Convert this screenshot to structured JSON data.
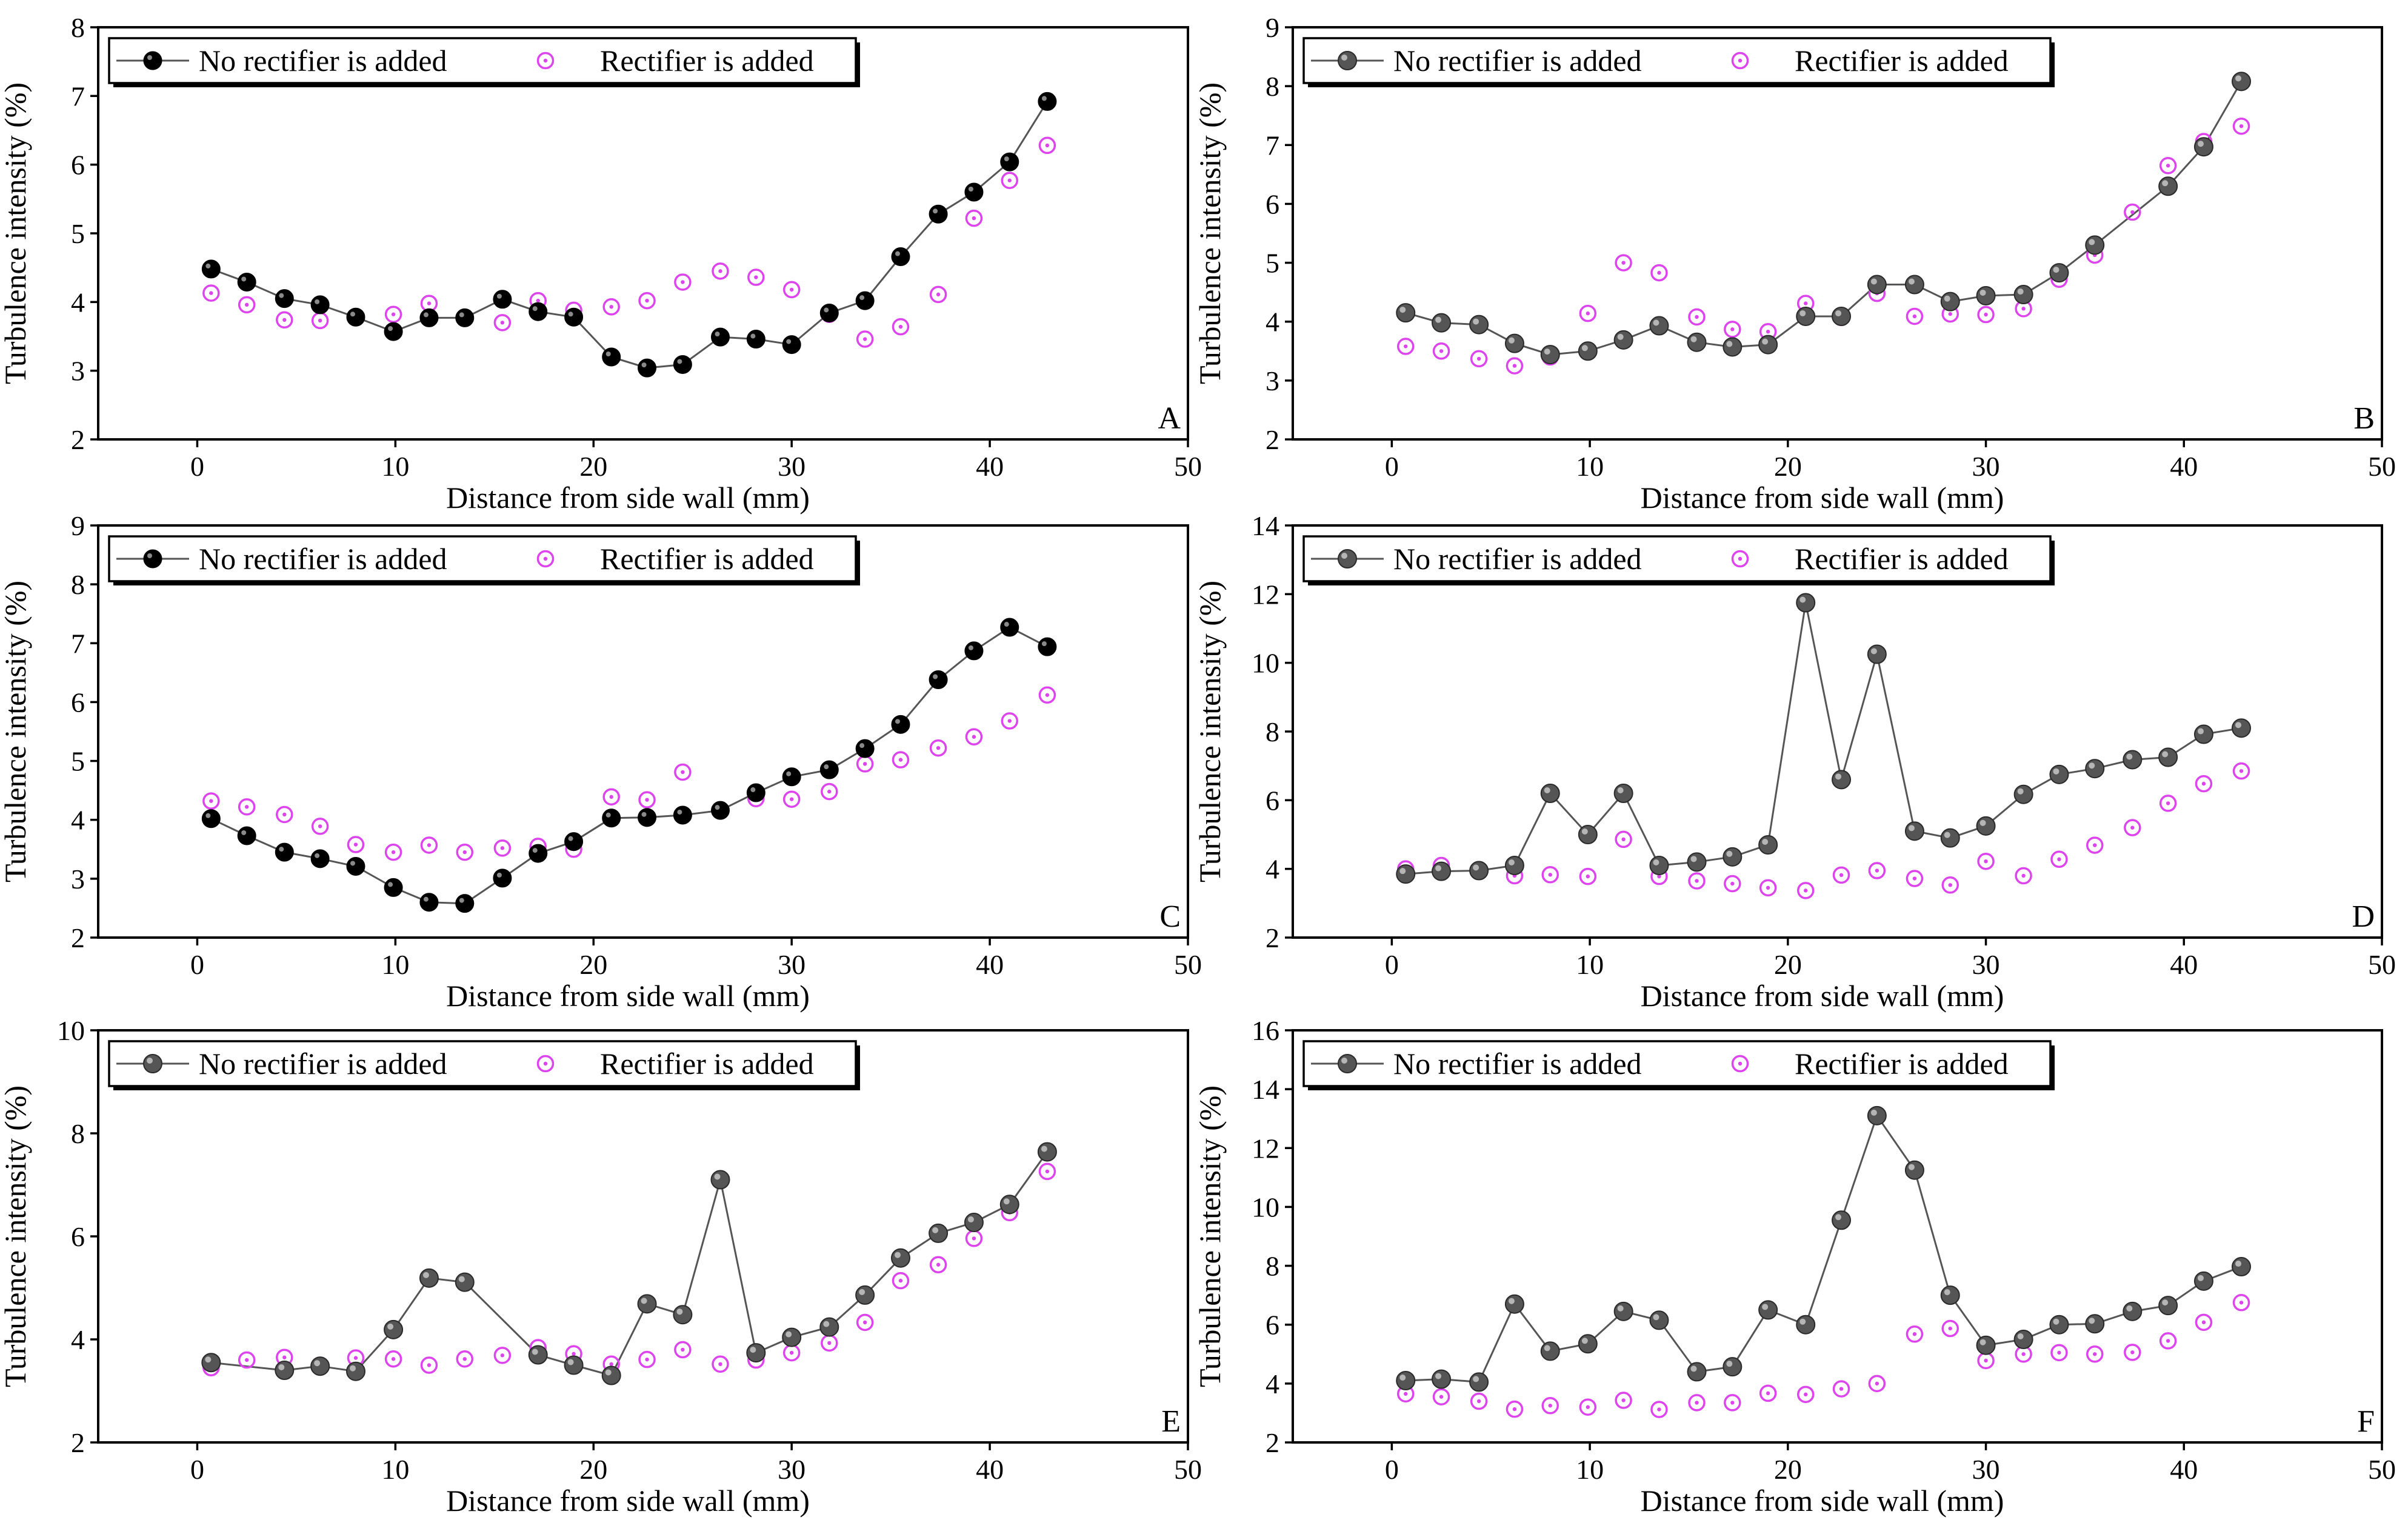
{
  "figure": {
    "series_names": [
      "No rectifier is added",
      "Rectifier is added"
    ],
    "colors": {
      "no_rectifier_black": "#000000",
      "no_rectifier_gray": "#555555",
      "rectifier": "#dd44ee",
      "line": "#555555"
    }
  },
  "chart_data": [
    {
      "type": "scatter",
      "panel": "A",
      "title": "",
      "xlabel": "Distance from side wall (mm)",
      "ylabel": "Turbulence intensity (%)",
      "xlim": [
        -5,
        50
      ],
      "ylim": [
        2,
        8
      ],
      "xticks": [
        0,
        10,
        20,
        30,
        40,
        50
      ],
      "yticks": [
        2,
        3,
        4,
        5,
        6,
        7,
        8
      ],
      "legend": "top-left",
      "marker_style": "black",
      "x": [
        0.7,
        2.5,
        4.4,
        6.2,
        8.0,
        9.9,
        11.7,
        13.5,
        15.4,
        17.2,
        19.0,
        20.9,
        22.7,
        24.5,
        26.4,
        28.2,
        30.0,
        31.9,
        33.7,
        35.5,
        37.4,
        39.2,
        41.0,
        42.9
      ],
      "series": [
        {
          "name": "No rectifier is added",
          "style": "line-marker",
          "values": [
            4.48,
            4.29,
            4.05,
            3.96,
            3.78,
            3.57,
            3.77,
            3.77,
            4.04,
            3.86,
            3.78,
            3.2,
            3.04,
            3.09,
            3.49,
            3.46,
            3.38,
            3.84,
            4.02,
            4.66,
            5.28,
            5.6,
            6.04,
            6.92
          ]
        },
        {
          "name": "Rectifier is added",
          "style": "marker",
          "values": [
            4.13,
            3.96,
            3.74,
            3.73,
            3.77,
            3.82,
            3.98,
            3.78,
            3.7,
            4.02,
            3.88,
            3.93,
            4.02,
            4.29,
            4.45,
            4.36,
            4.18,
            3.82,
            3.46,
            3.64,
            4.11,
            5.22,
            5.77,
            6.28
          ]
        }
      ]
    },
    {
      "type": "scatter",
      "panel": "B",
      "title": "",
      "xlabel": "Distance from side wall (mm)",
      "ylabel": "Turbulence intensity (%)",
      "xlim": [
        -5,
        50
      ],
      "ylim": [
        2,
        9
      ],
      "xticks": [
        0,
        10,
        20,
        30,
        40,
        50
      ],
      "yticks": [
        2,
        3,
        4,
        5,
        6,
        7,
        8,
        9
      ],
      "legend": "top-left",
      "marker_style": "gray",
      "x": [
        0.7,
        2.5,
        4.4,
        6.2,
        8.0,
        9.9,
        11.7,
        13.5,
        15.4,
        17.2,
        19.0,
        20.9,
        22.7,
        24.5,
        26.4,
        28.2,
        30.0,
        31.9,
        33.7,
        35.5,
        37.4,
        39.2,
        41.0,
        42.9
      ],
      "series": [
        {
          "name": "No rectifier is added",
          "style": "line-marker",
          "values": [
            4.15,
            3.98,
            3.95,
            3.63,
            3.44,
            3.5,
            3.69,
            3.93,
            3.65,
            3.57,
            3.61,
            4.09,
            4.09,
            4.63,
            4.63,
            4.34,
            4.44,
            4.46,
            4.83,
            5.3,
            null,
            6.3,
            6.97,
            8.08
          ]
        },
        {
          "name": "Rectifier is added",
          "style": "marker",
          "values": [
            3.58,
            3.5,
            3.37,
            3.25,
            3.4,
            4.14,
            5.0,
            4.83,
            4.08,
            3.87,
            3.83,
            4.31,
            4.07,
            4.48,
            4.09,
            4.13,
            4.12,
            4.22,
            4.72,
            5.13,
            5.86,
            6.65,
            7.06,
            7.32
          ]
        }
      ]
    },
    {
      "type": "scatter",
      "panel": "C",
      "title": "",
      "xlabel": "Distance from side wall (mm)",
      "ylabel": "Turbulence intensity (%)",
      "xlim": [
        -5,
        50
      ],
      "ylim": [
        2,
        9
      ],
      "xticks": [
        0,
        10,
        20,
        30,
        40,
        50
      ],
      "yticks": [
        2,
        3,
        4,
        5,
        6,
        7,
        8,
        9
      ],
      "legend": "top-left",
      "marker_style": "black",
      "x": [
        0.7,
        2.5,
        4.4,
        6.2,
        8.0,
        9.9,
        11.7,
        13.5,
        15.4,
        17.2,
        19.0,
        20.9,
        22.7,
        24.5,
        26.4,
        28.2,
        30.0,
        31.9,
        33.7,
        35.5,
        37.4,
        39.2,
        41.0,
        42.9
      ],
      "series": [
        {
          "name": "No rectifier is added",
          "style": "line-marker",
          "values": [
            4.02,
            3.73,
            3.45,
            3.34,
            3.21,
            2.85,
            2.6,
            2.58,
            3.01,
            3.43,
            3.63,
            4.03,
            4.04,
            4.08,
            4.16,
            4.46,
            4.73,
            4.85,
            5.21,
            5.62,
            6.38,
            6.87,
            7.27,
            6.94
          ]
        },
        {
          "name": "Rectifier is added",
          "style": "marker",
          "values": [
            4.32,
            4.22,
            4.09,
            3.89,
            3.58,
            3.45,
            3.57,
            3.45,
            3.52,
            3.55,
            3.5,
            4.39,
            4.34,
            4.81,
            4.15,
            4.36,
            4.35,
            4.48,
            4.95,
            5.02,
            5.22,
            5.41,
            5.68,
            6.12
          ]
        }
      ]
    },
    {
      "type": "scatter",
      "panel": "D",
      "title": "",
      "xlabel": "Distance from side wall (mm)",
      "ylabel": "Turbulence intensity (%)",
      "xlim": [
        -5,
        50
      ],
      "ylim": [
        2,
        14
      ],
      "xticks": [
        0,
        10,
        20,
        30,
        40,
        50
      ],
      "yticks": [
        2,
        4,
        6,
        8,
        10,
        12,
        14
      ],
      "legend": "top-left",
      "marker_style": "gray",
      "x": [
        0.7,
        2.5,
        4.4,
        6.2,
        8.0,
        9.9,
        11.7,
        13.5,
        15.4,
        17.2,
        19.0,
        20.9,
        22.7,
        24.5,
        26.4,
        28.2,
        30.0,
        31.9,
        33.7,
        35.5,
        37.4,
        39.2,
        41.0,
        42.9
      ],
      "series": [
        {
          "name": "No rectifier is added",
          "style": "line-marker",
          "values": [
            3.85,
            3.93,
            3.95,
            4.1,
            6.2,
            5.0,
            6.2,
            4.1,
            4.2,
            4.35,
            4.7,
            11.75,
            6.6,
            10.25,
            5.1,
            4.9,
            5.25,
            6.17,
            6.75,
            6.92,
            7.18,
            7.25,
            7.92,
            8.1
          ]
        },
        {
          "name": "Rectifier is added",
          "style": "marker",
          "values": [
            4.0,
            4.1,
            3.93,
            3.8,
            3.83,
            3.78,
            4.86,
            3.78,
            3.65,
            3.57,
            3.45,
            3.37,
            3.82,
            3.95,
            3.72,
            3.53,
            4.22,
            3.8,
            4.28,
            4.69,
            5.2,
            5.91,
            6.48,
            6.85
          ]
        }
      ]
    },
    {
      "type": "scatter",
      "panel": "E",
      "title": "",
      "xlabel": "Distance from side wall (mm)",
      "ylabel": "Turbulence intensity (%)",
      "xlim": [
        -5,
        50
      ],
      "ylim": [
        2,
        10
      ],
      "xticks": [
        0,
        10,
        20,
        30,
        40,
        50
      ],
      "yticks": [
        2,
        4,
        6,
        8,
        10
      ],
      "legend": "top-left",
      "marker_style": "gray",
      "x": [
        0.7,
        2.5,
        4.4,
        6.2,
        8.0,
        9.9,
        11.7,
        13.5,
        15.4,
        17.2,
        19.0,
        20.9,
        22.7,
        24.5,
        26.4,
        28.2,
        30.0,
        31.9,
        33.7,
        35.5,
        37.4,
        39.2,
        41.0,
        42.9
      ],
      "series": [
        {
          "name": "No rectifier is added",
          "style": "line-marker",
          "values": [
            3.55,
            null,
            3.4,
            3.48,
            3.38,
            4.19,
            5.19,
            5.11,
            null,
            3.7,
            3.5,
            3.3,
            4.69,
            4.48,
            7.1,
            3.74,
            4.04,
            4.24,
            4.86,
            5.58,
            6.06,
            6.27,
            6.62,
            7.64
          ]
        },
        {
          "name": "Rectifier is added",
          "style": "marker",
          "values": [
            3.45,
            3.6,
            3.65,
            3.5,
            3.64,
            3.62,
            3.5,
            3.62,
            3.69,
            3.84,
            3.72,
            3.52,
            3.61,
            3.8,
            3.52,
            3.6,
            3.74,
            3.93,
            4.33,
            5.14,
            5.45,
            5.96,
            6.46,
            7.26
          ]
        }
      ]
    },
    {
      "type": "scatter",
      "panel": "F",
      "title": "",
      "xlabel": "Distance from side wall (mm)",
      "ylabel": "Turbulence intensity (%)",
      "xlim": [
        -5,
        50
      ],
      "ylim": [
        2,
        16
      ],
      "xticks": [
        0,
        10,
        20,
        30,
        40,
        50
      ],
      "yticks": [
        2,
        4,
        6,
        8,
        10,
        12,
        14,
        16
      ],
      "legend": "top-left",
      "marker_style": "gray",
      "x": [
        0.7,
        2.5,
        4.4,
        6.2,
        8.0,
        9.9,
        11.7,
        13.5,
        15.4,
        17.2,
        19.0,
        20.9,
        22.7,
        24.5,
        26.4,
        28.2,
        30.0,
        31.9,
        33.7,
        35.5,
        37.4,
        39.2,
        41.0,
        42.9
      ],
      "series": [
        {
          "name": "No rectifier is added",
          "style": "line-marker",
          "values": [
            4.1,
            4.15,
            4.05,
            6.7,
            5.1,
            5.35,
            6.45,
            6.15,
            4.4,
            4.57,
            6.5,
            6.0,
            9.55,
            13.1,
            11.25,
            7.0,
            5.3,
            5.5,
            6.0,
            6.03,
            6.45,
            6.65,
            7.48,
            7.97
          ]
        },
        {
          "name": "Rectifier is added",
          "style": "marker",
          "values": [
            3.65,
            3.55,
            3.4,
            3.13,
            3.25,
            3.2,
            3.43,
            3.12,
            3.35,
            3.35,
            3.67,
            3.63,
            3.82,
            4.0,
            5.68,
            5.87,
            4.78,
            5.0,
            5.05,
            5.0,
            5.06,
            5.45,
            6.08,
            6.75
          ]
        }
      ]
    }
  ]
}
